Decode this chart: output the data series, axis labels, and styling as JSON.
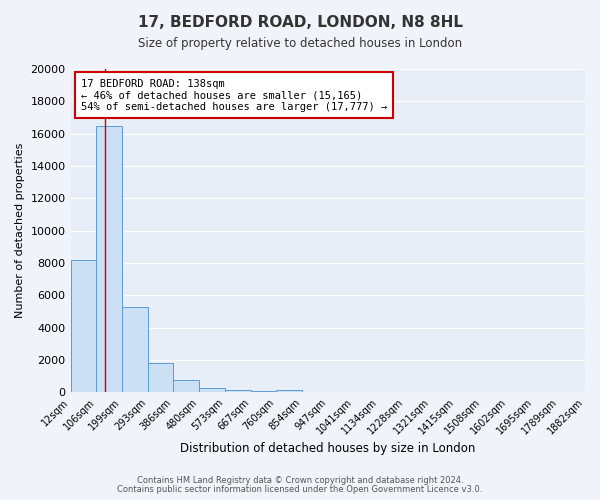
{
  "title": "17, BEDFORD ROAD, LONDON, N8 8HL",
  "subtitle": "Size of property relative to detached houses in London",
  "xlabel": "Distribution of detached houses by size in London",
  "ylabel": "Number of detached properties",
  "bar_edges": [
    12,
    106,
    199,
    293,
    386,
    480,
    573,
    667,
    760,
    854,
    947,
    1041,
    1134,
    1228,
    1321,
    1415,
    1508,
    1602,
    1695,
    1789,
    1882
  ],
  "bar_heights": [
    8200,
    16500,
    5300,
    1800,
    750,
    280,
    170,
    100,
    140,
    0,
    0,
    0,
    0,
    0,
    0,
    0,
    0,
    0,
    0,
    0
  ],
  "bar_color": "#cce0f5",
  "bar_edge_color": "#5b9bd5",
  "red_line_x": 138,
  "ylim": [
    0,
    20000
  ],
  "yticks": [
    0,
    2000,
    4000,
    6000,
    8000,
    10000,
    12000,
    14000,
    16000,
    18000,
    20000
  ],
  "annotation_title": "17 BEDFORD ROAD: 138sqm",
  "annotation_line1": "← 46% of detached houses are smaller (15,165)",
  "annotation_line2": "54% of semi-detached houses are larger (17,777) →",
  "annotation_box_color": "#ffffff",
  "annotation_box_edge": "#cc0000",
  "footer_line1": "Contains HM Land Registry data © Crown copyright and database right 2024.",
  "footer_line2": "Contains public sector information licensed under the Open Government Licence v3.0.",
  "bg_color": "#f0f4fa",
  "plot_bg_color": "#e8eef8",
  "grid_color": "#d0d8e8",
  "tick_labels": [
    "12sqm",
    "106sqm",
    "199sqm",
    "293sqm",
    "386sqm",
    "480sqm",
    "573sqm",
    "667sqm",
    "760sqm",
    "854sqm",
    "947sqm",
    "1041sqm",
    "1134sqm",
    "1228sqm",
    "1321sqm",
    "1415sqm",
    "1508sqm",
    "1602sqm",
    "1695sqm",
    "1789sqm",
    "1882sqm"
  ]
}
